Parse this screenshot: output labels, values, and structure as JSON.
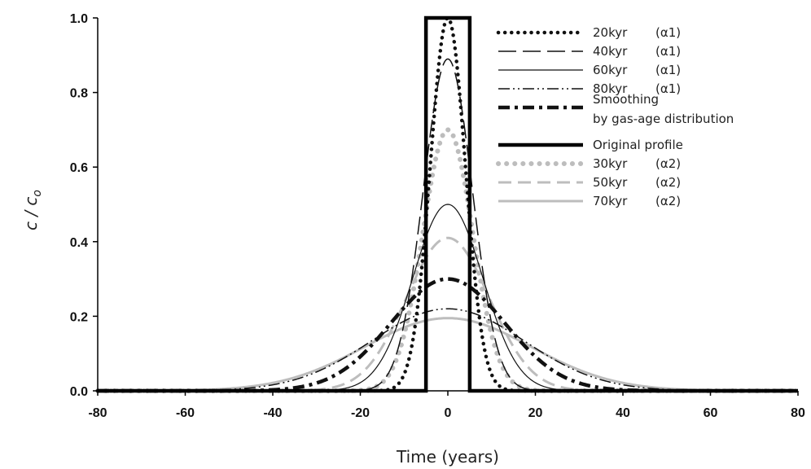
{
  "chart_data": {
    "type": "line",
    "xlabel": "Time (years)",
    "ylabel": "c / c",
    "ylabel_sub": "o",
    "xlim": [
      -80,
      80
    ],
    "ylim": [
      0,
      1
    ],
    "xticks": [
      -80,
      -60,
      -40,
      -20,
      0,
      20,
      40,
      60,
      80
    ],
    "yticks": [
      0.0,
      0.2,
      0.4,
      0.6,
      0.8,
      1.0
    ],
    "ytick_labels": [
      "0.0",
      "0.2",
      "0.4",
      "0.6",
      "0.8",
      "1.0"
    ],
    "grid": false,
    "legend_position": "top-right",
    "series": [
      {
        "name": "20kyr (α1)",
        "label_main": "20kyr",
        "label_tag": "(α1)",
        "kind": "gauss",
        "peak": 1.0,
        "sigma": 4.0,
        "color": "#111111",
        "style": "dotted-black"
      },
      {
        "name": "40kyr (α1)",
        "label_main": "40kyr",
        "label_tag": "(α1)",
        "kind": "gauss",
        "peak": 0.89,
        "sigma": 5.6,
        "color": "#111111",
        "style": "long-dash"
      },
      {
        "name": "60kyr (α1)",
        "label_main": "60kyr",
        "label_tag": "(α1)",
        "kind": "gauss",
        "peak": 0.5,
        "sigma": 8.0,
        "color": "#111111",
        "style": "thin-solid"
      },
      {
        "name": "80kyr (α1)",
        "label_main": "80kyr",
        "label_tag": "(α1)",
        "kind": "gauss",
        "peak": 0.22,
        "sigma": 17.5,
        "color": "#111111",
        "style": "dash-dot-dot"
      },
      {
        "name": "Smoothing by gas-age distribution",
        "label_main": "Smoothing",
        "label_line2": "by gas-age distribution",
        "kind": "gauss",
        "peak": 0.3,
        "sigma": 13.0,
        "color": "#111111",
        "style": "thick-dash-dot"
      },
      {
        "name": "Original profile",
        "label_main": "Original profile",
        "kind": "box",
        "peak": 1.0,
        "halfwidth": 5,
        "color": "#000000",
        "style": "thick-solid"
      },
      {
        "name": "30kyr (α2)",
        "label_main": "30kyr",
        "label_tag": "(α2)",
        "kind": "gauss",
        "peak": 0.7,
        "sigma": 5.7,
        "color": "#bdbdbd",
        "style": "dotted-gray"
      },
      {
        "name": "50kyr (α2)",
        "label_main": "50kyr",
        "label_tag": "(α2)",
        "kind": "gauss",
        "peak": 0.41,
        "sigma": 9.5,
        "color": "#bdbdbd",
        "style": "gray-dash"
      },
      {
        "name": "70kyr (α2)",
        "label_main": "70kyr",
        "label_tag": "(α2)",
        "kind": "gauss",
        "peak": 0.195,
        "sigma": 19.0,
        "color": "#bdbdbd",
        "style": "gray-solid"
      }
    ]
  }
}
